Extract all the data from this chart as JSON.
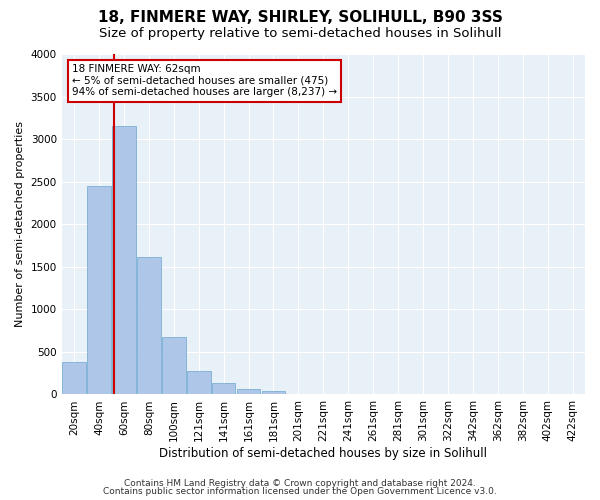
{
  "title1": "18, FINMERE WAY, SHIRLEY, SOLIHULL, B90 3SS",
  "title2": "Size of property relative to semi-detached houses in Solihull",
  "xlabel": "Distribution of semi-detached houses by size in Solihull",
  "ylabel": "Number of semi-detached properties",
  "footer1": "Contains HM Land Registry data © Crown copyright and database right 2024.",
  "footer2": "Contains public sector information licensed under the Open Government Licence v3.0.",
  "annotation_title": "18 FINMERE WAY: 62sqm",
  "annotation_line1": "← 5% of semi-detached houses are smaller (475)",
  "annotation_line2": "94% of semi-detached houses are larger (8,237) →",
  "bar_categories": [
    "20sqm",
    "40sqm",
    "60sqm",
    "80sqm",
    "100sqm",
    "121sqm",
    "141sqm",
    "161sqm",
    "181sqm",
    "201sqm",
    "221sqm",
    "241sqm",
    "261sqm",
    "281sqm",
    "301sqm",
    "322sqm",
    "342sqm",
    "362sqm",
    "382sqm",
    "402sqm",
    "422sqm"
  ],
  "bar_values": [
    380,
    2450,
    3150,
    1620,
    680,
    280,
    130,
    60,
    45,
    0,
    0,
    0,
    0,
    0,
    0,
    0,
    0,
    0,
    0,
    0,
    0
  ],
  "bar_color": "#aec6e8",
  "bar_edge_color": "#7aafd4",
  "vline_color": "#cc0000",
  "vline_x": 1.62,
  "ylim": [
    0,
    4000
  ],
  "yticks": [
    0,
    500,
    1000,
    1500,
    2000,
    2500,
    3000,
    3500,
    4000
  ],
  "bg_color": "#e8f0f8",
  "grid_color": "#ffffff",
  "title1_fontsize": 11,
  "title2_fontsize": 9.5,
  "annotation_box_color": "#cc0000",
  "xlabel_fontsize": 8.5,
  "ylabel_fontsize": 8,
  "tick_fontsize": 7.5,
  "footer_fontsize": 6.5
}
